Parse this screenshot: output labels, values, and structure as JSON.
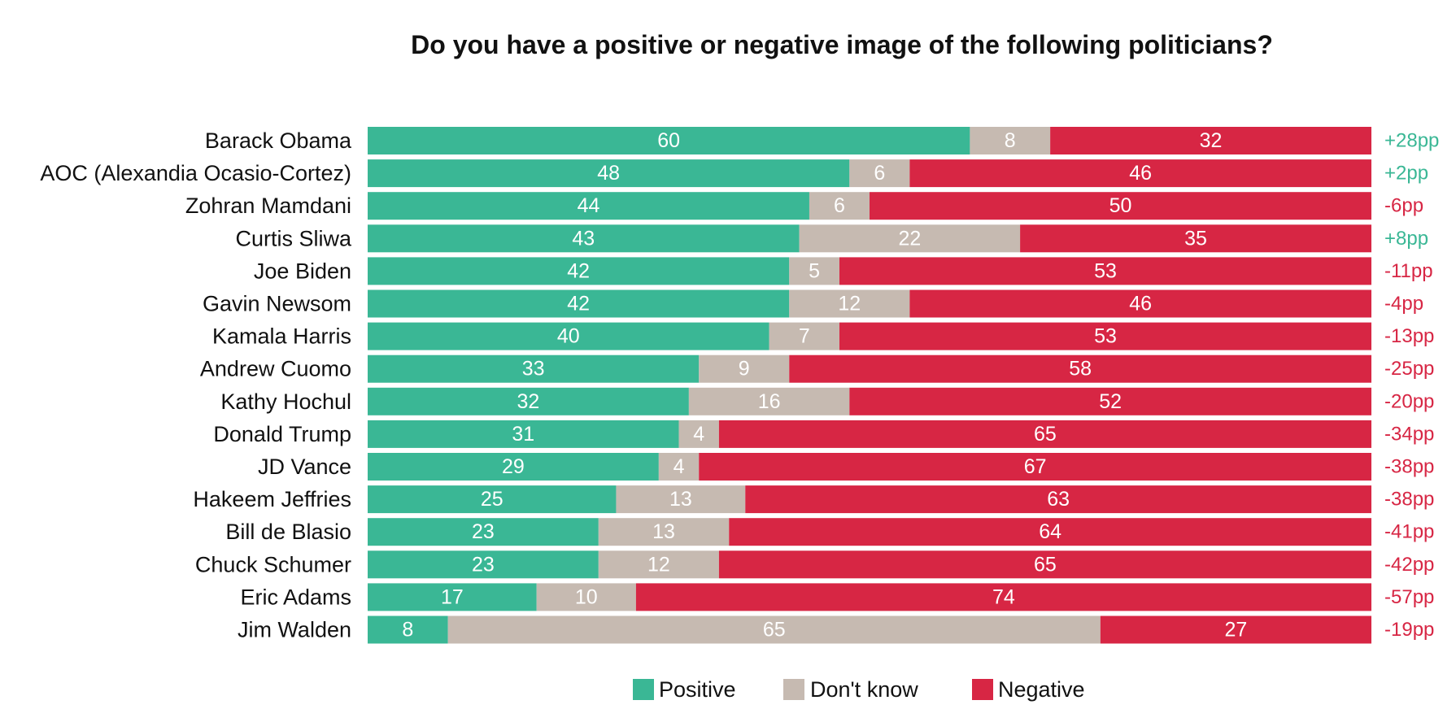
{
  "chart_data": {
    "type": "bar",
    "orientation": "horizontal",
    "stacked": true,
    "title": "Do you have a positive or negative image of the following politicians?",
    "categories": [
      "Barack Obama",
      "AOC (Alexandia Ocasio-Cortez)",
      "Zohran Mamdani",
      "Curtis Sliwa",
      "Joe Biden",
      "Gavin Newsom",
      "Kamala Harris",
      "Andrew Cuomo",
      "Kathy Hochul",
      "Donald Trump",
      "JD Vance",
      "Hakeem Jeffries",
      "Bill de Blasio",
      "Chuck Schumer",
      "Eric Adams",
      "Jim Walden"
    ],
    "series": [
      {
        "name": "Positive",
        "color": "#3ab795",
        "values": [
          60,
          48,
          44,
          43,
          42,
          42,
          40,
          33,
          32,
          31,
          29,
          25,
          23,
          23,
          17,
          8
        ]
      },
      {
        "name": "Don't know",
        "color": "#c6bab1",
        "values": [
          8,
          6,
          6,
          22,
          5,
          12,
          7,
          9,
          16,
          4,
          4,
          13,
          13,
          12,
          10,
          65
        ]
      },
      {
        "name": "Negative",
        "color": "#d72644",
        "values": [
          32,
          46,
          50,
          35,
          53,
          46,
          53,
          58,
          52,
          65,
          67,
          63,
          64,
          65,
          74,
          27
        ]
      }
    ],
    "net_labels": [
      "+28pp",
      "+2pp",
      "-6pp",
      "+8pp",
      "-11pp",
      "-4pp",
      "-13pp",
      "-25pp",
      "-20pp",
      "-34pp",
      "-38pp",
      "-38pp",
      "-41pp",
      "-42pp",
      "-57pp",
      "-19pp"
    ],
    "net_colors": {
      "positive": "#3ab795",
      "negative": "#d72644"
    },
    "legend_position": "bottom-center",
    "grid": false
  }
}
